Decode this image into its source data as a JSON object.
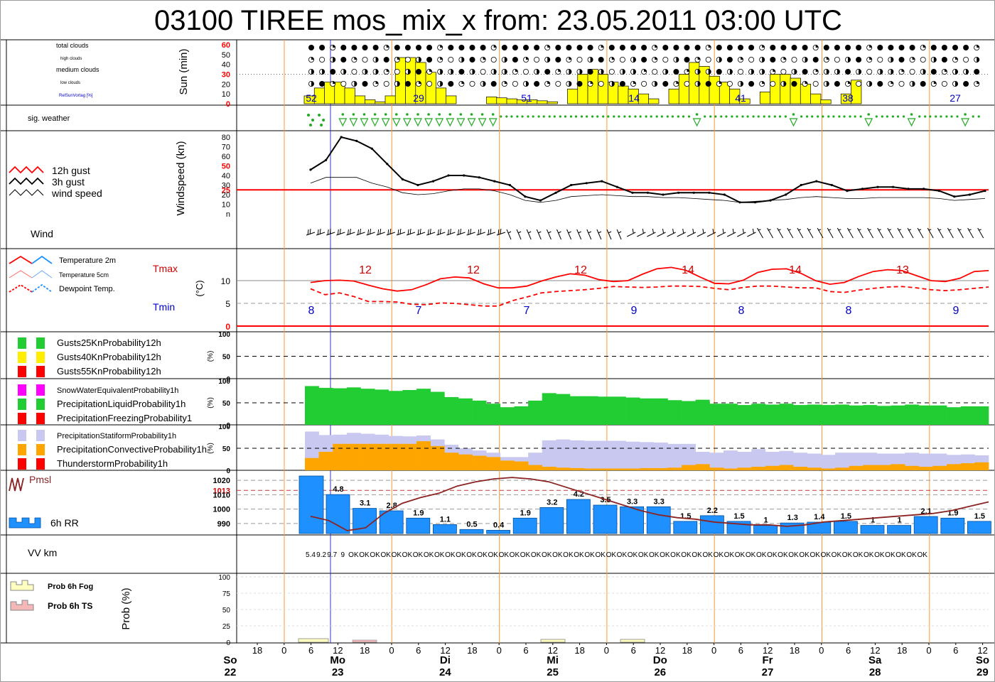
{
  "title": "03100 TIREE mos_mix_x from: 23.05.2011 03:00 UTC",
  "colors": {
    "sun": "#ffff00",
    "precip_liquid": "#22cc33",
    "stratiform": "#c8c8f0",
    "convective": "#ffa500",
    "rain": "#1e90ff",
    "temperature": "#ff0000",
    "dewpoint": "#ff0000",
    "gust": "#000000",
    "pressure": "#8b2323",
    "sig_weather": "#22aa22",
    "day_line": "#ff9933",
    "now_line": "#3333cc"
  },
  "time_axis": {
    "hour_ticks": [
      "18",
      "0",
      "6",
      "12",
      "18",
      "0",
      "6",
      "12",
      "18",
      "0",
      "6",
      "12",
      "18",
      "0",
      "6",
      "12",
      "18",
      "0",
      "6",
      "12",
      "18",
      "0",
      "6",
      "12",
      "18",
      "0",
      "6",
      "12"
    ],
    "days": [
      {
        "name": "So",
        "date": "22"
      },
      {
        "name": "Mo",
        "date": "23"
      },
      {
        "name": "Di",
        "date": "24"
      },
      {
        "name": "Mi",
        "date": "25"
      },
      {
        "name": "Do",
        "date": "26"
      },
      {
        "name": "Fr",
        "date": "27"
      },
      {
        "name": "Sa",
        "date": "28"
      },
      {
        "name": "So",
        "date": "29"
      }
    ]
  },
  "panel_clouds": {
    "legend": [
      "total clouds",
      "high clouds",
      "medium clouds",
      "low clouds",
      "RelSunVortag [%]"
    ],
    "ylabel": "Sun (min)",
    "ticks": [
      "60",
      "50",
      "40",
      "30",
      "20",
      "10",
      "0"
    ],
    "sun_pct_labels": [
      "52",
      "29",
      "51",
      "14",
      "41",
      "38",
      "27"
    ]
  },
  "panel_sigweather": {
    "label": "sig. weather"
  },
  "panel_wind": {
    "legend": [
      "12h gust",
      "3h gust",
      "wind speed"
    ],
    "ylabel": "Windspeed (kn)",
    "ticks": [
      "80",
      "70",
      "60",
      "50",
      "40",
      "30",
      "25",
      "20",
      "10",
      "n"
    ],
    "wind_label": "Wind"
  },
  "panel_temp": {
    "legend": [
      "Temperature 2m",
      "Temperature 5cm",
      "Dewpoint Temp."
    ],
    "tmax_label": "Tmax",
    "tmin_label": "Tmin",
    "ylabel": "(°C)",
    "ticks": [
      "10",
      "5",
      "0"
    ],
    "tmax_values": [
      "12",
      "12",
      "12",
      "14",
      "14",
      "13"
    ],
    "tmin_values": [
      "8",
      "7",
      "7",
      "9",
      "8",
      "8",
      "9"
    ]
  },
  "panel_gusts": {
    "legend": [
      "Gusts25KnProbability12h",
      "Gusts40KnProbability12h",
      "Gusts55KnProbability12h"
    ],
    "ylabel": "(%)",
    "ticks": [
      "100",
      "50",
      "0"
    ]
  },
  "panel_precip": {
    "legend": [
      "SnowWaterEquivalentProbability1h",
      "PrecipitationLiquidProbability1h",
      "PrecipitationFreezingProbability1"
    ],
    "ylabel": "(%)",
    "ticks": [
      "100",
      "50",
      "0"
    ]
  },
  "panel_conv": {
    "legend": [
      "PrecipitationStatiformProbability1h",
      "PrecipitationConvectiveProbability1h",
      "ThunderstormProbability1h"
    ],
    "ylabel": "(%)",
    "ticks": [
      "100",
      "50",
      "0"
    ]
  },
  "panel_pressure": {
    "legend_pmsl": "Pmsl",
    "legend_rr": "6h RR",
    "ticks": [
      "1020",
      "1013",
      "1010",
      "1000",
      "990"
    ],
    "rr_labels": [
      "4.8",
      "3.1",
      "2.8",
      "1.9",
      "1.1",
      "0.5",
      "0.4",
      "1.9",
      "3.2",
      "4.2",
      "3.5",
      "3.3",
      "3.3",
      "1.5",
      "2.2",
      "1.5",
      "1",
      "1.3",
      "1.4",
      "1.5",
      "1",
      "1",
      "2.1",
      "1.9",
      "1.5"
    ]
  },
  "panel_vis": {
    "label": "VV km",
    "values": [
      "5.4",
      "9.2",
      "9.7",
      "9",
      "OK",
      "OK",
      "OK",
      "OK",
      "OK",
      "OK",
      "OK",
      "OK",
      "OK",
      "OK",
      "OK",
      "OK",
      "OK",
      "OK",
      "OK",
      "OK",
      "OK",
      "OK",
      "OK",
      "OK",
      "OK",
      "OK",
      "OK",
      "OK",
      "OK",
      "OK",
      "OK",
      "OK",
      "OK",
      "OK",
      "OK",
      "OK",
      "OK",
      "OK",
      "OK",
      "OK",
      "OK",
      "OK",
      "OK",
      "OK",
      "OK",
      "OK",
      "OK",
      "OK",
      "OK",
      "OK",
      "OK",
      "OK",
      "OK",
      "OK",
      "OK",
      "OK",
      "OK",
      "OK"
    ]
  },
  "panel_fog": {
    "legend": [
      "Prob 6h Fog",
      "Prob 6h TS"
    ],
    "ylabel": "Prob (%)",
    "ticks": [
      "100",
      "75",
      "50",
      "25",
      "0"
    ]
  },
  "chart_data": [
    {
      "type": "bar",
      "name": "sunshine",
      "unit": "min per hour",
      "x_start": "2011-05-23 06:00 UTC",
      "step_hours": 3,
      "values": [
        8,
        16,
        22,
        22,
        16,
        8,
        4,
        2,
        8,
        47,
        47,
        42,
        32,
        16,
        8,
        0,
        0,
        0,
        7,
        6,
        5,
        4,
        4,
        3,
        2,
        0,
        15,
        30,
        35,
        30,
        22,
        18,
        15,
        10,
        5,
        0,
        15,
        30,
        42,
        38,
        28,
        22,
        15,
        5,
        0,
        12,
        30,
        30,
        26,
        20,
        10,
        4,
        0,
        10,
        24
      ]
    },
    {
      "type": "line",
      "name": "wind",
      "unit": "kn",
      "x_start": "2011-05-23 06:00 UTC",
      "step_hours": 3,
      "series": [
        {
          "name": "3h gust",
          "values": [
            46,
            56,
            80,
            76,
            68,
            52,
            36,
            30,
            34,
            40,
            40,
            38,
            34,
            30,
            18,
            14,
            22,
            30,
            32,
            34,
            28,
            22,
            22,
            20,
            22,
            22,
            22,
            20,
            12,
            12,
            14,
            20,
            30,
            34,
            30,
            24,
            26,
            28,
            28,
            26,
            26,
            24,
            18,
            20,
            24
          ]
        },
        {
          "name": "wind speed",
          "values": [
            32,
            38,
            38,
            38,
            32,
            28,
            22,
            20,
            21,
            24,
            26,
            26,
            24,
            20,
            14,
            12,
            14,
            18,
            19,
            20,
            19,
            18,
            18,
            17,
            17,
            16,
            15,
            14,
            12,
            13,
            14,
            15,
            17,
            18,
            17,
            16,
            16,
            17,
            17,
            17,
            17,
            16,
            14,
            15,
            16
          ]
        }
      ],
      "reference_line": 25,
      "ylim": [
        0,
        80
      ]
    },
    {
      "type": "line",
      "name": "temperature",
      "unit": "°C",
      "x_start": "2011-05-23 06:00 UTC",
      "step_hours": 3,
      "series": [
        {
          "name": "Temperature 2m",
          "values": [
            9.6,
            10.0,
            10.1,
            9.9,
            9.0,
            8.2,
            7.7,
            8.0,
            9.1,
            10.4,
            10.8,
            10.6,
            9.3,
            8.4,
            8.4,
            8.8,
            9.9,
            10.8,
            11.5,
            11.2,
            10.2,
            9.8,
            10.0,
            11.4,
            12.6,
            12.9,
            12.3,
            10.8,
            9.4,
            9.3,
            10.1,
            11.8,
            12.5,
            12.6,
            11.6,
            10.0,
            9.2,
            9.6,
            10.9,
            12.0,
            12.4,
            12.2,
            11.1,
            10.0,
            9.8,
            10.5,
            12.0,
            12.2
          ]
        },
        {
          "name": "Dewpoint Temp.",
          "values": [
            8.2,
            6.9,
            7.3,
            6.5,
            5.4,
            5.4,
            5.3,
            4.8,
            4.7,
            5.1,
            5.0,
            4.7,
            4.4,
            4.4,
            5.6,
            6.4,
            7.3,
            7.6,
            7.8,
            8.0,
            8.3,
            8.7,
            8.6,
            8.5,
            8.6,
            8.8,
            8.8,
            8.7,
            8.3,
            8.0,
            8.5,
            8.8,
            8.8,
            8.6,
            8.4,
            8.4,
            7.6,
            7.4,
            7.9,
            8.3,
            8.6,
            8.7,
            8.4,
            8.0,
            7.8,
            8.0,
            8.3,
            8.6
          ]
        }
      ],
      "ylim": [
        0,
        14
      ]
    },
    {
      "type": "bar",
      "name": "precipitation liquid probability",
      "unit": "%",
      "x_start": "2011-05-23 06:00 UTC",
      "step_hours": 3,
      "values": [
        88,
        84,
        83,
        85,
        82,
        80,
        77,
        79,
        82,
        75,
        63,
        60,
        55,
        48,
        40,
        42,
        55,
        72,
        70,
        65,
        65,
        64,
        64,
        62,
        60,
        60,
        56,
        54,
        57,
        48,
        48,
        45,
        48,
        46,
        48,
        45,
        46,
        45,
        46,
        44,
        45,
        43,
        44,
        46,
        44,
        44,
        40,
        42,
        42
      ]
    },
    {
      "type": "bar",
      "name": "stratiform / convective probability",
      "unit": "%",
      "x_start": "2011-05-23 06:00 UTC",
      "step_hours": 3,
      "series": [
        {
          "name": "PrecipitationStatiformProbability1h",
          "values": [
            88,
            80,
            81,
            85,
            83,
            81,
            78,
            77,
            79,
            70,
            58,
            50,
            45,
            40,
            30,
            30,
            40,
            68,
            70,
            68,
            67,
            67,
            67,
            65,
            64,
            63,
            60,
            60,
            42,
            40,
            45,
            42,
            48,
            42,
            44,
            40,
            38,
            35,
            40,
            40,
            40,
            38,
            38,
            40,
            38,
            38,
            35,
            36,
            34
          ]
        },
        {
          "name": "PrecipitationConvectiveProbability1h",
          "values": [
            28,
            42,
            60,
            60,
            60,
            60,
            60,
            60,
            66,
            55,
            40,
            36,
            33,
            30,
            22,
            20,
            12,
            8,
            6,
            5,
            4,
            4,
            4,
            4,
            5,
            5,
            6,
            12,
            14,
            6,
            4,
            6,
            8,
            10,
            12,
            8,
            6,
            4,
            6,
            10,
            12,
            12,
            14,
            10,
            8,
            10,
            14,
            16,
            18
          ]
        }
      ]
    },
    {
      "type": "bar",
      "name": "6h RR",
      "unit": "mm",
      "x_start": "2011-05-23 06:00 UTC",
      "step_hours": 6,
      "values": [
        4.8,
        3.1,
        2.8,
        1.9,
        1.1,
        0.5,
        0.4,
        1.9,
        3.2,
        4.2,
        3.5,
        3.3,
        3.3,
        1.5,
        2.2,
        1.5,
        1,
        1.3,
        1.4,
        1.5,
        1,
        1,
        2.1,
        1.9,
        1.5
      ]
    },
    {
      "type": "line",
      "name": "Pmsl",
      "unit": "hPa",
      "x_start": "2011-05-23 06:00 UTC",
      "step_hours": 6,
      "values": [
        995,
        992,
        985,
        987,
        997,
        1004,
        1008,
        1011,
        1016,
        1019,
        1021,
        1022,
        1021,
        1019,
        1015,
        1011,
        1007,
        1003,
        999,
        996,
        994,
        993,
        991,
        990,
        989,
        989,
        988,
        989,
        991,
        992,
        993,
        994,
        995,
        996,
        997,
        999,
        1002,
        1005
      ]
    }
  ]
}
